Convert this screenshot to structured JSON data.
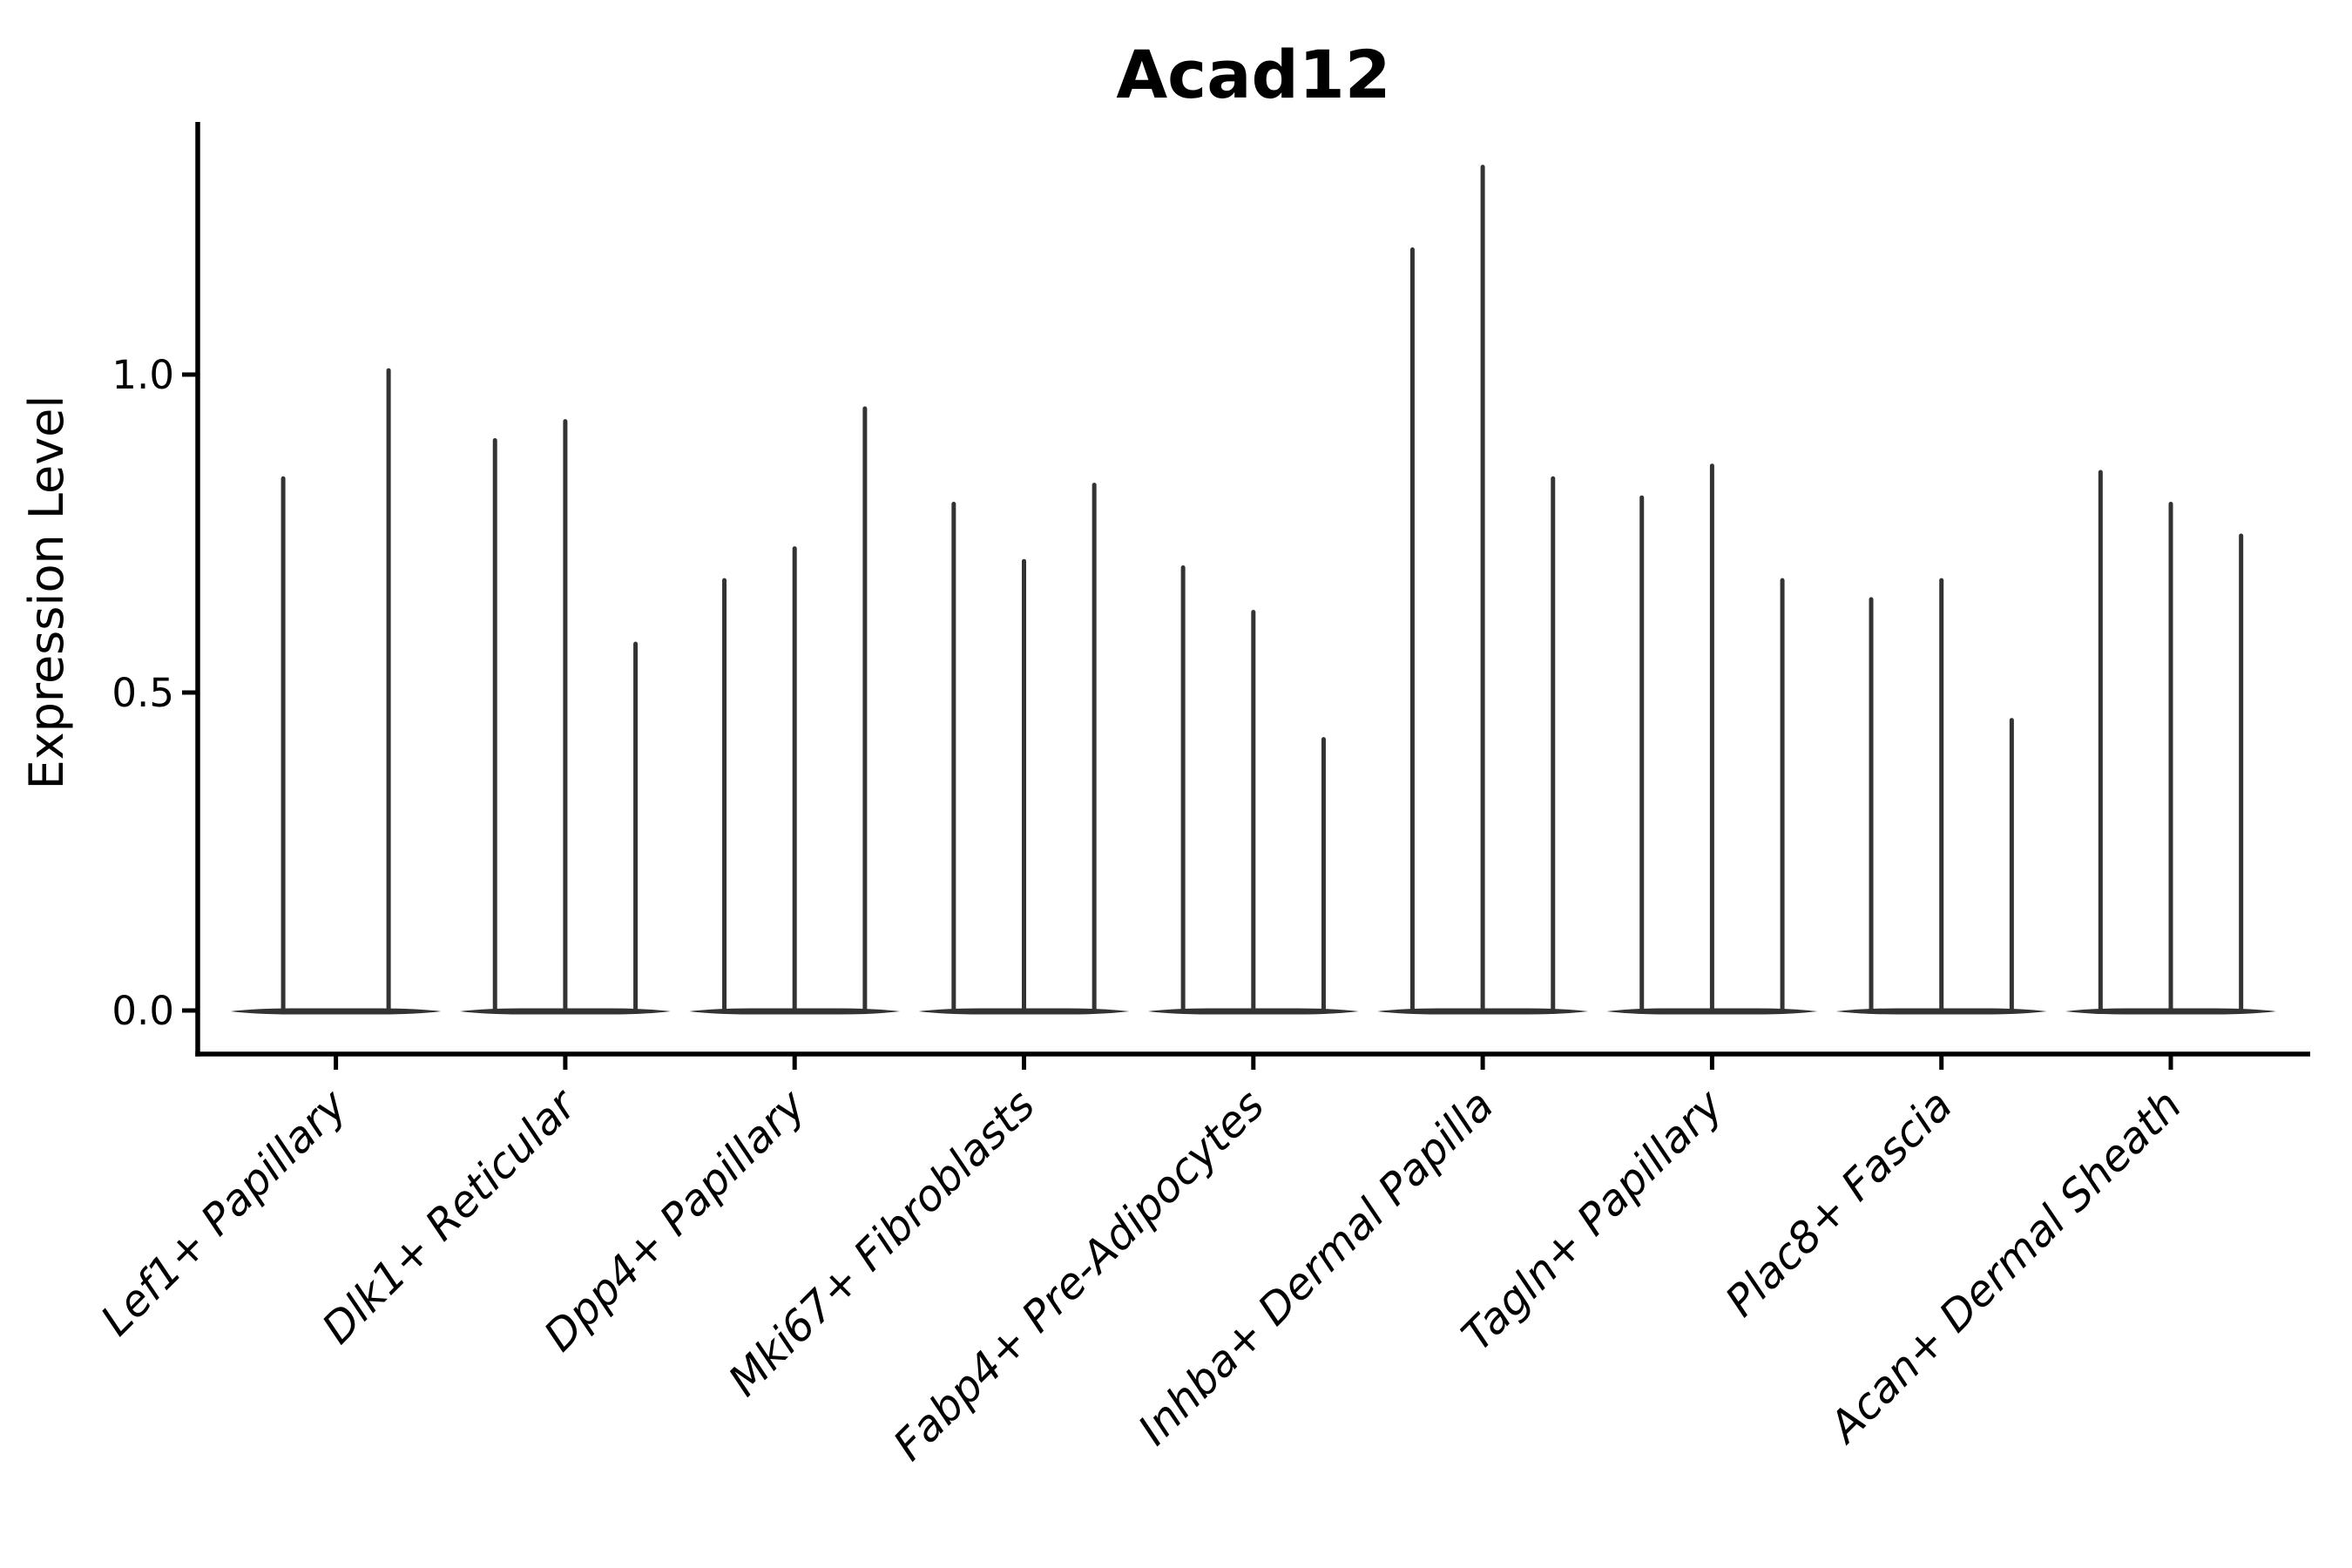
{
  "chart_data": {
    "type": "violin",
    "title": "Acad12",
    "xlabel": "",
    "ylabel": "Expression Level",
    "yticks": [
      "0.0",
      "0.5",
      "1.0"
    ],
    "ytick_values": [
      0.0,
      0.5,
      1.0
    ],
    "ylim": [
      -0.07,
      1.4
    ],
    "grid": "off",
    "legend": "none",
    "violin_style": "thin spikes with flat base at zero (most cells at 0 expression)",
    "groups": [
      {
        "label": "Lef1+ Papillary",
        "violin_max_expression": [
          0.84,
          1.01
        ]
      },
      {
        "label": "Dlk1+ Reticular",
        "violin_max_expression": [
          0.9,
          0.93,
          0.58
        ]
      },
      {
        "label": "Dpp4+ Papillary",
        "violin_max_expression": [
          0.68,
          0.73,
          0.95
        ]
      },
      {
        "label": "Mki67+ Fibroblasts",
        "violin_max_expression": [
          0.8,
          0.71,
          0.83
        ]
      },
      {
        "label": "Fabp4+ Pre-Adipocytes",
        "violin_max_expression": [
          0.7,
          0.63,
          0.43
        ]
      },
      {
        "label": "Inhba+ Dermal Papilla",
        "violin_max_expression": [
          1.2,
          1.33,
          0.84
        ]
      },
      {
        "label": "Tagln+ Papillary",
        "violin_max_expression": [
          0.81,
          0.86,
          0.68
        ]
      },
      {
        "label": "Plac8+ Fascia",
        "violin_max_expression": [
          0.65,
          0.68,
          0.46
        ]
      },
      {
        "label": "Acan+ Dermal Sheath",
        "violin_max_expression": [
          0.85,
          0.8,
          0.75
        ]
      }
    ],
    "colors": {
      "violin": "#333333",
      "axis": "#000000",
      "text": "#000000",
      "background": "#ffffff"
    }
  }
}
